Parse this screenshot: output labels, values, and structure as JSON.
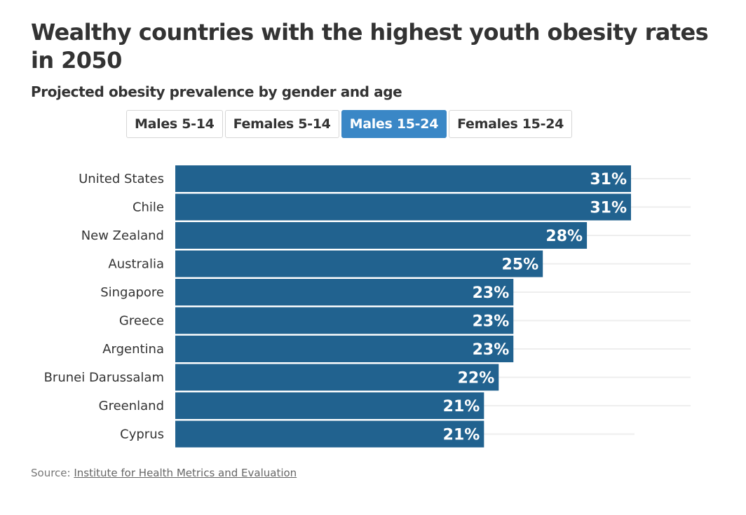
{
  "header": {
    "title": "Wealthy countries with the highest youth obesity rates in 2050",
    "subtitle": "Projected obesity prevalence by gender and age"
  },
  "tabs": [
    {
      "label": "Males 5-14",
      "active": false
    },
    {
      "label": "Females 5-14",
      "active": false
    },
    {
      "label": "Males 15-24",
      "active": true
    },
    {
      "label": "Females 15-24",
      "active": false
    }
  ],
  "footer": {
    "source_prefix": "Source: ",
    "source_link": "Institute for Health Metrics and Evaluation"
  },
  "colors": {
    "bar": "#21628f",
    "active_tab": "#3a87c6",
    "gridline": "#eeeeee"
  },
  "chart_data": {
    "type": "bar",
    "orientation": "horizontal",
    "title": "Wealthy countries with the highest youth obesity rates in 2050",
    "subtitle": "Projected obesity prevalence by gender and age",
    "series_name": "Males 15-24",
    "categories": [
      "United States",
      "Chile",
      "New Zealand",
      "Australia",
      "Singapore",
      "Greece",
      "Argentina",
      "Brunei Darussalam",
      "Greenland",
      "Cyprus"
    ],
    "values": [
      31,
      31,
      28,
      25,
      23,
      23,
      23,
      22,
      21,
      21
    ],
    "value_labels": [
      "31%",
      "31%",
      "28%",
      "25%",
      "23%",
      "23%",
      "23%",
      "22%",
      "21%",
      "21%"
    ],
    "unit": "%",
    "xlabel": "",
    "ylabel": "",
    "xlim": [
      0,
      35
    ],
    "grid": true,
    "legend": "none"
  }
}
